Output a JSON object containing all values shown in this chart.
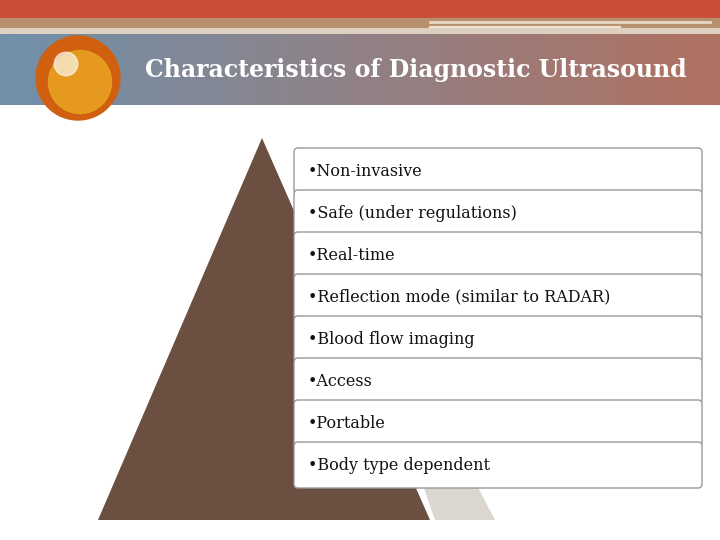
{
  "title": "Characteristics of Diagnostic Ultrasound",
  "title_text_color": "#ffffff",
  "title_font_size": 17,
  "top_bar_color": "#c94f3a",
  "top_bar2_color": "#b89070",
  "top_bar3_color": "#ddd0c0",
  "header_color_left": "#7090aa",
  "header_color_right": "#b07060",
  "bullet_items": [
    "•Non-invasive",
    "•Safe (under regulations)",
    "•Real-time",
    "•Reflection mode (similar to RADAR)",
    "•Blood flow imaging",
    "•Access",
    "•Portable",
    "•Body type dependent"
  ],
  "box_bg_color": "#ffffff",
  "box_border_color": "#999999",
  "box_text_color": "#111111",
  "triangle_color": "#6b5042",
  "triangle_shadow_color": "#cdc5bc",
  "bg_color": "#ffffff",
  "orb_outer_color": "#d06010",
  "orb_inner_color": "#e8a020",
  "orb_highlight_color": "#ffffff"
}
